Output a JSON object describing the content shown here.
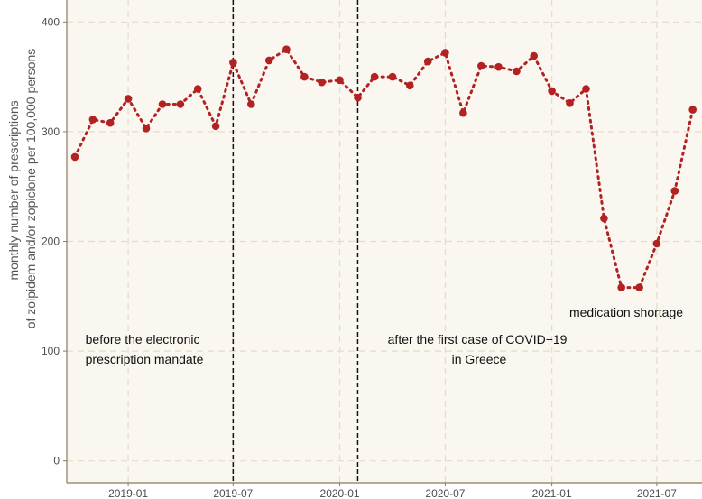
{
  "chart_data": {
    "type": "line",
    "title": "",
    "xlabel": "",
    "ylabel_lines": [
      "monthly number of prescriptions",
      "of zolpidem and/or zopiclone per 100,000 persons"
    ],
    "x_tick_labels": [
      "2019-01",
      "2019-07",
      "2020-01",
      "2020-07",
      "2021-01",
      "2021-07"
    ],
    "y_tick_labels": [
      "0",
      "100",
      "200",
      "300",
      "400"
    ],
    "ylim": [
      -20,
      420
    ],
    "xlim": [
      "2018-09-17",
      "2021-09-17"
    ],
    "grid": true,
    "colors": {
      "background": "#faf6f0",
      "series": "#b22222",
      "grid": "#e6dccb",
      "axis": "#8b7a5e"
    },
    "series": [
      {
        "name": "",
        "x": [
          "2018-10-01",
          "2018-11-01",
          "2018-12-01",
          "2019-01-01",
          "2019-02-01",
          "2019-03-01",
          "2019-04-01",
          "2019-05-01",
          "2019-06-01",
          "2019-07-01",
          "2019-08-01",
          "2019-09-01",
          "2019-10-01",
          "2019-11-01",
          "2019-12-01",
          "2020-01-01",
          "2020-02-01",
          "2020-03-01",
          "2020-04-01",
          "2020-05-01",
          "2020-06-01",
          "2020-07-01",
          "2020-08-01",
          "2020-09-01",
          "2020-10-01",
          "2020-11-01",
          "2020-12-01",
          "2021-01-01",
          "2021-02-01",
          "2021-03-01",
          "2021-04-01",
          "2021-05-01",
          "2021-06-01",
          "2021-07-01",
          "2021-08-01",
          "2021-09-01"
        ],
        "values": [
          277,
          311,
          308,
          330,
          303,
          325,
          325,
          339,
          305,
          363,
          325,
          365,
          375,
          350,
          345,
          347,
          331,
          350,
          350,
          342,
          364,
          372,
          317,
          360,
          359,
          355,
          369,
          337,
          326,
          339,
          221,
          158,
          158,
          198,
          246,
          320
        ]
      }
    ],
    "vlines": [
      "2019-07-01",
      "2020-02-01"
    ],
    "annotations": [
      {
        "lines": [
          "before the electronic",
          "prescription mandate"
        ]
      },
      {
        "lines": [
          "after the first case of COVID−19",
          "in Greece"
        ]
      },
      {
        "lines": [
          "medication shortage"
        ]
      }
    ]
  }
}
